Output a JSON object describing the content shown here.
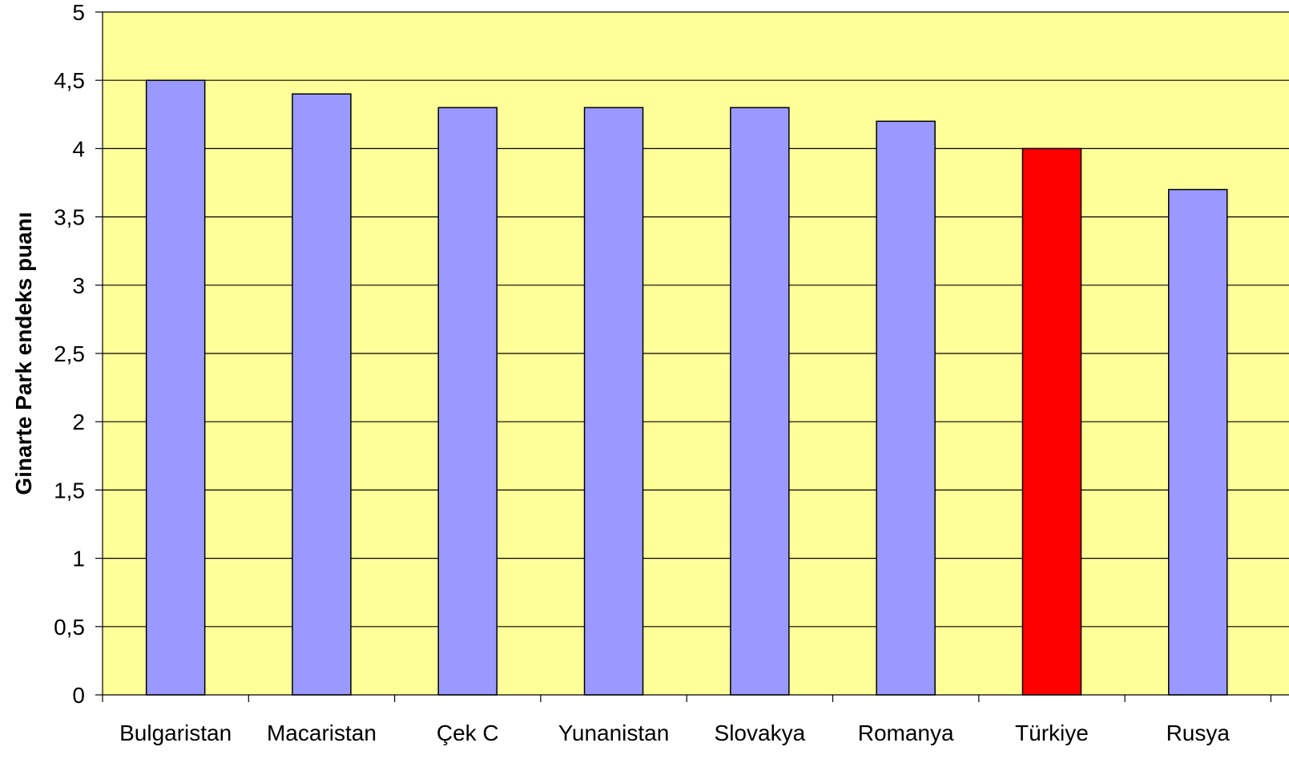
{
  "chart_data": {
    "type": "bar",
    "title": "",
    "xlabel": "",
    "ylabel": "Ginarte Park endeks puanı",
    "categories": [
      "Bulgaristan",
      "Macaristan",
      "Çek C",
      "Yunanistan",
      "Slovakya",
      "Romanya",
      "Türkiye",
      "Rusya"
    ],
    "values": [
      4.5,
      4.4,
      4.3,
      4.3,
      4.3,
      4.2,
      4.0,
      3.7
    ],
    "ylim": [
      0,
      5
    ],
    "yticks": [
      0,
      0.5,
      1,
      1.5,
      2,
      2.5,
      3,
      3.5,
      4,
      4.5,
      5
    ],
    "ytick_labels": [
      "0",
      "0,5",
      "1",
      "1,5",
      "2",
      "2,5",
      "3",
      "3,5",
      "4",
      "4,5",
      "5"
    ],
    "grid": true,
    "legend": "none",
    "colors": {
      "plot_background": "#ffff99",
      "bar_default": "#9999ff",
      "bar_highlight": "#ff0000",
      "gridline": "#000000"
    },
    "highlight_category": "Türkiye"
  }
}
